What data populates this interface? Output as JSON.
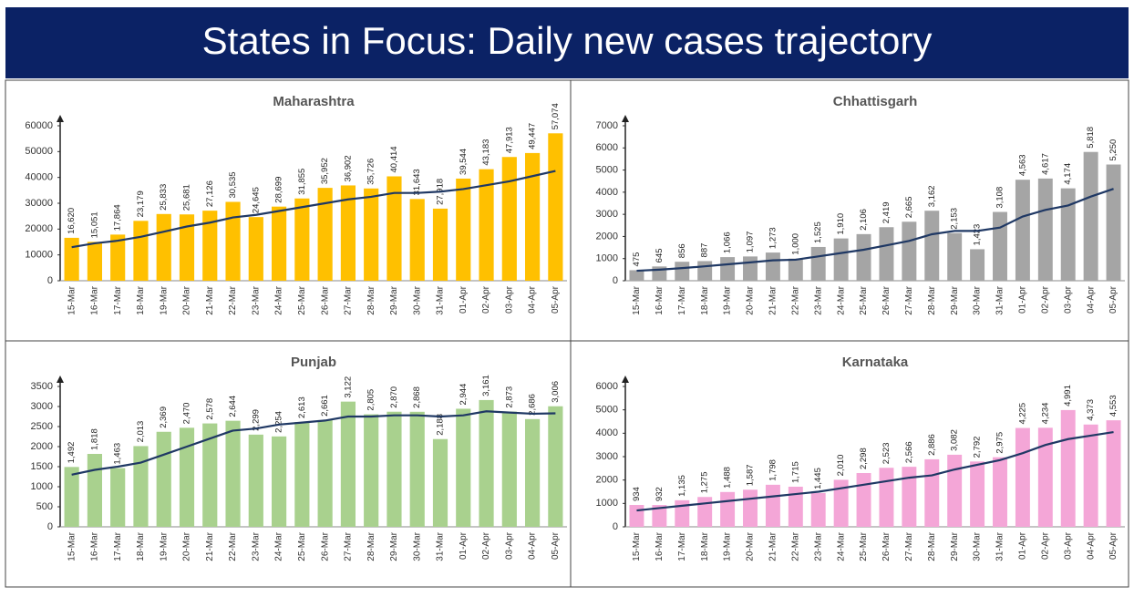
{
  "title": "States in Focus: Daily new cases trajectory",
  "chart_data": [
    {
      "type": "bar",
      "title": "Maharashtra",
      "categories": [
        "15-Mar",
        "16-Mar",
        "17-Mar",
        "18-Mar",
        "19-Mar",
        "20-Mar",
        "21-Mar",
        "22-Mar",
        "23-Mar",
        "24-Mar",
        "25-Mar",
        "26-Mar",
        "27-Mar",
        "28-Mar",
        "29-Mar",
        "30-Mar",
        "31-Mar",
        "01-Apr",
        "02-Apr",
        "03-Apr",
        "04-Apr",
        "05-Apr"
      ],
      "series": [
        {
          "type": "bar",
          "color": "#ffc000",
          "values": [
            16620,
            15051,
            17864,
            23179,
            25833,
            25681,
            27126,
            30535,
            24645,
            28699,
            31855,
            35952,
            36902,
            35726,
            40414,
            31643,
            27918,
            39544,
            43183,
            47913,
            49447,
            57074
          ],
          "value_labels": [
            "16,620",
            "15,051",
            "17,864",
            "23,179",
            "25,833",
            "25,681",
            "27,126",
            "30,535",
            "24,645",
            "28,699",
            "31,855",
            "35,952",
            "36,902",
            "35,726",
            "40,414",
            "31,643",
            "27,918",
            "39,544",
            "43,183",
            "47,913",
            "49,447",
            "57,074"
          ]
        },
        {
          "type": "line",
          "color": "#1f3864",
          "values": [
            13000,
            14500,
            15500,
            17000,
            19000,
            21000,
            22500,
            24500,
            25500,
            27000,
            28500,
            30000,
            31500,
            32500,
            34000,
            34000,
            34500,
            35500,
            37000,
            38500,
            40500,
            42500
          ]
        }
      ],
      "ylim": [
        0,
        60000
      ],
      "yticks": [
        0,
        10000,
        20000,
        30000,
        40000,
        50000,
        60000
      ]
    },
    {
      "type": "bar",
      "title": "Chhattisgarh",
      "categories": [
        "15-Mar",
        "16-Mar",
        "17-Mar",
        "18-Mar",
        "19-Mar",
        "20-Mar",
        "21-Mar",
        "22-Mar",
        "23-Mar",
        "24-Mar",
        "25-Mar",
        "26-Mar",
        "27-Mar",
        "28-Mar",
        "29-Mar",
        "30-Mar",
        "31-Mar",
        "01-Apr",
        "02-Apr",
        "03-Apr",
        "04-Apr",
        "05-Apr"
      ],
      "series": [
        {
          "type": "bar",
          "color": "#a5a5a5",
          "values": [
            475,
            645,
            856,
            887,
            1066,
            1097,
            1273,
            1000,
            1525,
            1910,
            2106,
            2419,
            2665,
            3162,
            2153,
            1423,
            3108,
            4563,
            4617,
            4174,
            5818,
            5250
          ],
          "value_labels": [
            "475",
            "645",
            "856",
            "887",
            "1,066",
            "1,097",
            "1,273",
            "1,000",
            "1,525",
            "1,910",
            "2,106",
            "2,419",
            "2,665",
            "3,162",
            "2,153",
            "1,423",
            "3,108",
            "4,563",
            "4,617",
            "4,174",
            "5,818",
            "5,250"
          ]
        },
        {
          "type": "line",
          "color": "#1f3864",
          "values": [
            450,
            500,
            570,
            650,
            740,
            830,
            920,
            950,
            1100,
            1250,
            1400,
            1600,
            1800,
            2100,
            2250,
            2250,
            2400,
            2900,
            3200,
            3400,
            3800,
            4150
          ]
        }
      ],
      "ylim": [
        0,
        7000
      ],
      "yticks": [
        0,
        1000,
        2000,
        3000,
        4000,
        5000,
        6000,
        7000
      ]
    },
    {
      "type": "bar",
      "title": "Punjab",
      "categories": [
        "15-Mar",
        "16-Mar",
        "17-Mar",
        "18-Mar",
        "19-Mar",
        "20-Mar",
        "21-Mar",
        "22-Mar",
        "23-Mar",
        "24-Mar",
        "25-Mar",
        "26-Mar",
        "27-Mar",
        "28-Mar",
        "29-Mar",
        "30-Mar",
        "31-Mar",
        "01-Apr",
        "02-Apr",
        "03-Apr",
        "04-Apr",
        "05-Apr"
      ],
      "series": [
        {
          "type": "bar",
          "color": "#a9d18e",
          "values": [
            1492,
            1818,
            1463,
            2013,
            2369,
            2470,
            2578,
            2644,
            2299,
            2254,
            2613,
            2661,
            3122,
            2805,
            2870,
            2868,
            2188,
            2944,
            3161,
            2873,
            2686,
            3006
          ],
          "value_labels": [
            "1,492",
            "1,818",
            "1,463",
            "2,013",
            "2,369",
            "2,470",
            "2,578",
            "2,644",
            "2,299",
            "2,254",
            "2,613",
            "2,661",
            "3,122",
            "2,805",
            "2,870",
            "2,868",
            "2,188",
            "2,944",
            "3,161",
            "2,873",
            "2,686",
            "3,006"
          ]
        },
        {
          "type": "line",
          "color": "#1f3864",
          "values": [
            1300,
            1420,
            1500,
            1600,
            1800,
            2000,
            2200,
            2400,
            2450,
            2550,
            2600,
            2650,
            2750,
            2750,
            2780,
            2780,
            2750,
            2780,
            2880,
            2850,
            2820,
            2830
          ]
        }
      ],
      "ylim": [
        0,
        3500
      ],
      "yticks": [
        0,
        500,
        1000,
        1500,
        2000,
        2500,
        3000,
        3500
      ]
    },
    {
      "type": "bar",
      "title": "Karnataka",
      "categories": [
        "15-Mar",
        "16-Mar",
        "17-Mar",
        "18-Mar",
        "19-Mar",
        "20-Mar",
        "21-Mar",
        "22-Mar",
        "23-Mar",
        "24-Mar",
        "25-Mar",
        "26-Mar",
        "27-Mar",
        "28-Mar",
        "29-Mar",
        "30-Mar",
        "31-Mar",
        "01-Apr",
        "02-Apr",
        "03-Apr",
        "04-Apr",
        "05-Apr"
      ],
      "series": [
        {
          "type": "bar",
          "color": "#f4a6d7",
          "values": [
            934,
            932,
            1135,
            1275,
            1488,
            1587,
            1798,
            1715,
            1445,
            2010,
            2298,
            2523,
            2566,
            2886,
            3082,
            2792,
            2975,
            4225,
            4234,
            4991,
            4373,
            4553
          ],
          "value_labels": [
            "934",
            "932",
            "1,135",
            "1,275",
            "1,488",
            "1,587",
            "1,798",
            "1,715",
            "1,445",
            "2,010",
            "2,298",
            "2,523",
            "2,566",
            "2,886",
            "3,082",
            "2,792",
            "2,975",
            "4,225",
            "4,234",
            "4,991",
            "4,373",
            "4,553"
          ]
        },
        {
          "type": "line",
          "color": "#1f3864",
          "values": [
            700,
            800,
            900,
            1000,
            1100,
            1200,
            1300,
            1400,
            1500,
            1650,
            1800,
            1950,
            2100,
            2200,
            2450,
            2650,
            2850,
            3150,
            3500,
            3750,
            3900,
            4050
          ]
        }
      ],
      "ylim": [
        0,
        6000
      ],
      "yticks": [
        0,
        1000,
        2000,
        3000,
        4000,
        5000,
        6000
      ]
    }
  ]
}
